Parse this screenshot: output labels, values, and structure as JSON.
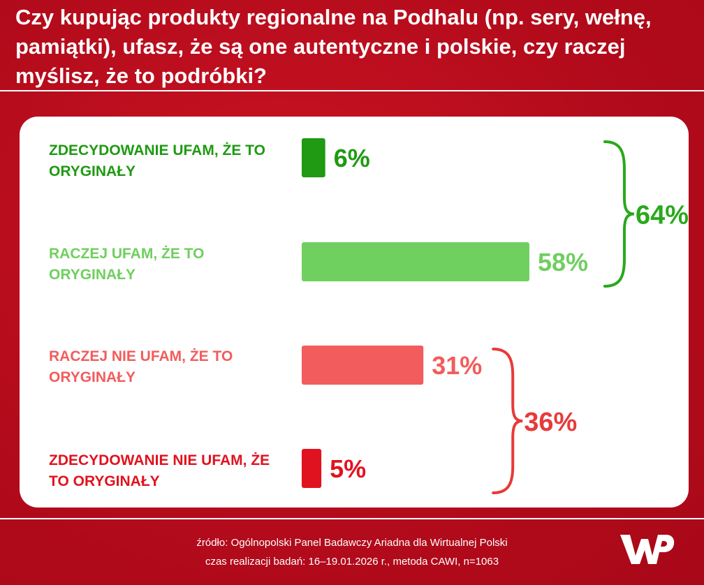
{
  "title": "Czy kupując produkty regionalne na Podhalu (np. sery, wełnę, pamiątki), ufasz, że są one autentyczne i polskie, czy raczej myślisz, że to podróbki?",
  "logo_text": "WP",
  "footer": {
    "source": "źródło: Ogólnopolski Panel Badawczy Ariadna dla Wirtualnej Polski",
    "method": "czas realizacji badań: 16–19.01.2026 r., metoda CAWI, n=1063"
  },
  "colors": {
    "background": "#b80c1c",
    "dark_green": "#1f9a12",
    "light_green": "#6fcf5f",
    "light_red": "#f25c5c",
    "dark_red": "#e1121f"
  },
  "chart_data": {
    "type": "bar",
    "orientation": "horizontal",
    "title": "Czy kupując produkty regionalne na Podhalu (np. sery, wełnę, pamiątki), ufasz, że są one autentyczne i polskie, czy raczej myślisz, że to podróbki?",
    "categories": [
      "ZDECYDOWANIE UFAM, ŻE TO ORYGINAŁY",
      "RACZEJ UFAM, ŻE TO ORYGINAŁY",
      "RACZEJ NIE UFAM, ŻE TO ORYGINAŁY",
      "ZDECYDOWANIE NIE UFAM, ŻE TO ORYGINAŁY"
    ],
    "values": [
      6,
      58,
      31,
      5
    ],
    "value_labels": [
      "6%",
      "58%",
      "31%",
      "5%"
    ],
    "bar_colors": [
      "#1f9a12",
      "#6fcf5f",
      "#f25c5c",
      "#e1121f"
    ],
    "groups": [
      {
        "categories": [
          0,
          1
        ],
        "total": 64,
        "label": "64%",
        "color": "#2aa81c"
      },
      {
        "categories": [
          2,
          3
        ],
        "total": 36,
        "label": "36%",
        "color": "#e83a3a"
      }
    ],
    "xlim": [
      0,
      100
    ],
    "grid": false,
    "legend": "none"
  }
}
